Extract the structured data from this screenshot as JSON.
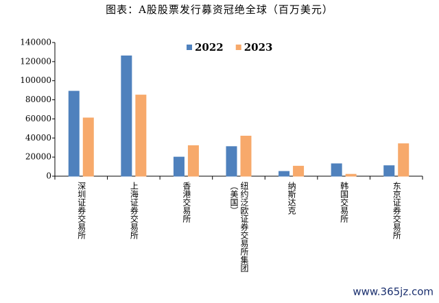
{
  "chart_data": {
    "type": "bar",
    "title": "图表：A股股票发行募资冠绝全球（百万美元）",
    "watermark": "www.365jz.com",
    "categories": [
      "深圳证券交易所",
      "上海证券交易所",
      "香港交易所",
      "纽约泛欧证券交易所集团（美国）",
      "纳斯达克",
      "韩国交易所",
      "东京证券交易所"
    ],
    "series": [
      {
        "name": "2022",
        "color": "#4f81bd",
        "values": [
          89000,
          126000,
          20000,
          31000,
          5000,
          13000,
          11000
        ]
      },
      {
        "name": "2023",
        "color": "#f7a96b",
        "values": [
          61000,
          85000,
          32000,
          42000,
          10500,
          2000,
          34000
        ]
      }
    ],
    "ylim": [
      0,
      140000
    ],
    "yticks": [
      0,
      20000,
      40000,
      60000,
      80000,
      100000,
      120000,
      140000
    ],
    "grid": false,
    "legend": "top"
  }
}
